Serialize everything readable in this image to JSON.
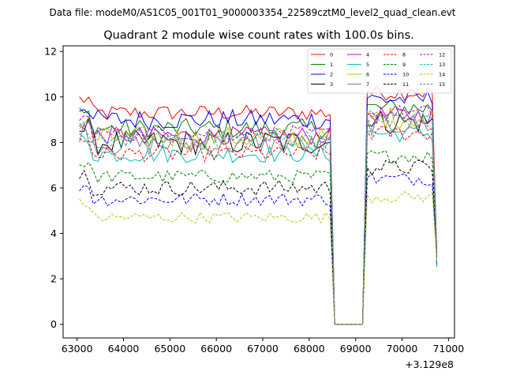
{
  "chart_data": {
    "type": "line",
    "suptitle": "Data file: modeM0/AS1C05_001T01_9000003354_22589cztM0_level2_quad_clean.evt",
    "title": "Quadrant 2 module wise count rates with 100.0s bins.",
    "xlabel": "",
    "ylabel": "",
    "x_offset_text": "+3.129e8",
    "x_offset": 312900000,
    "xlim": [
      62700,
      71130
    ],
    "ylim": [
      -0.6,
      12.25
    ],
    "xticks": [
      63000,
      64000,
      65000,
      66000,
      67000,
      68000,
      69000,
      70000,
      71000
    ],
    "yticks": [
      0,
      2,
      4,
      6,
      8,
      10,
      12
    ],
    "x_start": 63050,
    "x_step": 100,
    "gap_start": 68500,
    "gap_end": 69150,
    "x_end": 70750,
    "legend_position": "top-right",
    "series": [
      {
        "name": "0",
        "color": "#ff0000",
        "dash": "solid",
        "level": 9.3,
        "amp": 0.35
      },
      {
        "name": "1",
        "color": "#008000",
        "dash": "solid",
        "level": 8.6,
        "amp": 0.45
      },
      {
        "name": "2",
        "color": "#0000ff",
        "dash": "solid",
        "level": 9.0,
        "amp": 0.45
      },
      {
        "name": "3",
        "color": "#000000",
        "dash": "solid",
        "level": 8.0,
        "amp": 0.55
      },
      {
        "name": "4",
        "color": "#bf00bf",
        "dash": "solid",
        "level": 8.3,
        "amp": 0.4
      },
      {
        "name": "5",
        "color": "#00bfbf",
        "dash": "solid",
        "level": 7.5,
        "amp": 0.4
      },
      {
        "name": "6",
        "color": "#bfbf00",
        "dash": "solid",
        "level": 8.2,
        "amp": 0.5
      },
      {
        "name": "7",
        "color": "#808080",
        "dash": "solid",
        "level": 7.9,
        "amp": 0.5
      },
      {
        "name": "8",
        "color": "#ff0000",
        "dash": "dashed",
        "level": 7.5,
        "amp": 0.35
      },
      {
        "name": "9",
        "color": "#008000",
        "dash": "dashed",
        "level": 6.5,
        "amp": 0.3
      },
      {
        "name": "10",
        "color": "#0000ff",
        "dash": "dashed",
        "level": 5.5,
        "amp": 0.3
      },
      {
        "name": "11",
        "color": "#000000",
        "dash": "dashed",
        "level": 6.0,
        "amp": 0.35
      },
      {
        "name": "12",
        "color": "#bf00bf",
        "dash": "dashed",
        "level": 8.4,
        "amp": 0.35
      },
      {
        "name": "13",
        "color": "#00bfbf",
        "dash": "dashed",
        "level": 8.2,
        "amp": 0.4
      },
      {
        "name": "14",
        "color": "#bfbf00",
        "dash": "dashed",
        "level": 4.7,
        "amp": 0.25
      },
      {
        "name": "15",
        "color": "#808080",
        "dash": "dashed",
        "level": 8.0,
        "amp": 0.4
      }
    ]
  }
}
